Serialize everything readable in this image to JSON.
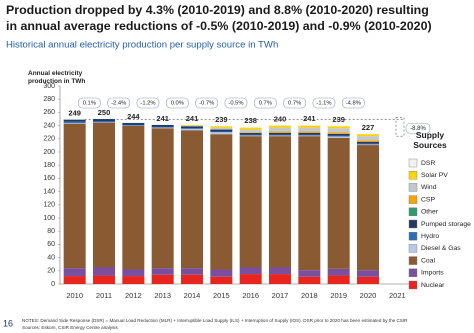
{
  "chart_data": {
    "type": "stacked-bar",
    "title": "Production dropped by 4.3% (2010-2019) and 8.8% (2010-2020) resulting in annual average reductions of -0.5% (2010-2019) and -0.9% (2010-2020)",
    "subtitle": "Historical annual electricity production per supply source in TWh",
    "y_label": "Annual electricity production in TWh",
    "legend_title": "Supply Sources",
    "categories": [
      "2010",
      "2011",
      "2012",
      "2013",
      "2014",
      "2015",
      "2016",
      "2017",
      "2018",
      "2019",
      "2020",
      "2021"
    ],
    "series": [
      {
        "name": "Nuclear",
        "color": "#e8251f",
        "values": [
          12,
          13,
          12,
          14,
          14,
          11,
          15,
          15,
          11,
          13,
          11,
          null
        ]
      },
      {
        "name": "Imports",
        "color": "#7b4fa0",
        "values": [
          12,
          12,
          10,
          10,
          10,
          11,
          10,
          10,
          10,
          10,
          10,
          null
        ]
      },
      {
        "name": "Coal",
        "color": "#8a5a32",
        "values": [
          219,
          219.5,
          217.5,
          212,
          209,
          205,
          199,
          199,
          203,
          198.5,
          189.5,
          null
        ]
      },
      {
        "name": "Diesel & Gas",
        "color": "#b8c9e8",
        "values": [
          1,
          0.5,
          0.5,
          1,
          2,
          3,
          1,
          1,
          1,
          2,
          1,
          null
        ]
      },
      {
        "name": "Hydro",
        "color": "#2e6fb6",
        "values": [
          2,
          2,
          1,
          1,
          1,
          1,
          1,
          1,
          1,
          1,
          1,
          null
        ]
      },
      {
        "name": "Pumped storage",
        "color": "#1f3864",
        "values": [
          3,
          3,
          3,
          3,
          3,
          3,
          3,
          3,
          3,
          3,
          3,
          null
        ]
      },
      {
        "name": "Other",
        "color": "#2f9b6e",
        "values": [
          0,
          0,
          0,
          0,
          0,
          0,
          0,
          0,
          0,
          0,
          0,
          null
        ]
      },
      {
        "name": "CSP",
        "color": "#f4a300",
        "values": [
          0,
          0,
          0,
          0,
          0,
          0.5,
          1,
          2,
          2,
          2,
          2,
          null
        ]
      },
      {
        "name": "Wind",
        "color": "#c3c8d0",
        "values": [
          0,
          0,
          0,
          0,
          1,
          2.5,
          4,
          6,
          6,
          6.5,
          6.5,
          null
        ]
      },
      {
        "name": "Solar PV",
        "color": "#ffd500",
        "values": [
          0,
          0,
          0,
          0,
          1,
          2,
          3,
          3,
          3,
          3,
          3,
          null
        ]
      },
      {
        "name": "DSR",
        "color": "#f2f2f2",
        "values": [
          0,
          0,
          0,
          0,
          0,
          0,
          0,
          0,
          0,
          0,
          0,
          null
        ]
      }
    ],
    "totals": [
      249,
      250,
      244,
      241,
      241,
      239,
      238,
      240,
      241,
      239,
      227,
      null
    ],
    "growth_labels": [
      "0.1%",
      "-2.4%",
      "-1.2%",
      "0.0%",
      "-0.7%",
      "-0.5%",
      "0.7%",
      "0.7%",
      "-1.1%",
      "-4.8%"
    ],
    "side_annotation": "-8.8%",
    "ylim": [
      0,
      300
    ],
    "yticks": [
      0,
      20,
      40,
      60,
      80,
      100,
      120,
      140,
      160,
      180,
      200,
      220,
      240,
      260,
      280,
      300
    ],
    "grid": false
  },
  "footer": {
    "page_number": "16",
    "notes": "NOTES: Demand Side Response (DSR) = Manual Load Reduction (MLR) + Interruptible Load Supply (ILS) + Interruption of Supply (IOS). DSR prior to 2020 has been estimated by the CSIR",
    "sources": "Sources: Eskom, CSIR Energy Centre analysis"
  }
}
